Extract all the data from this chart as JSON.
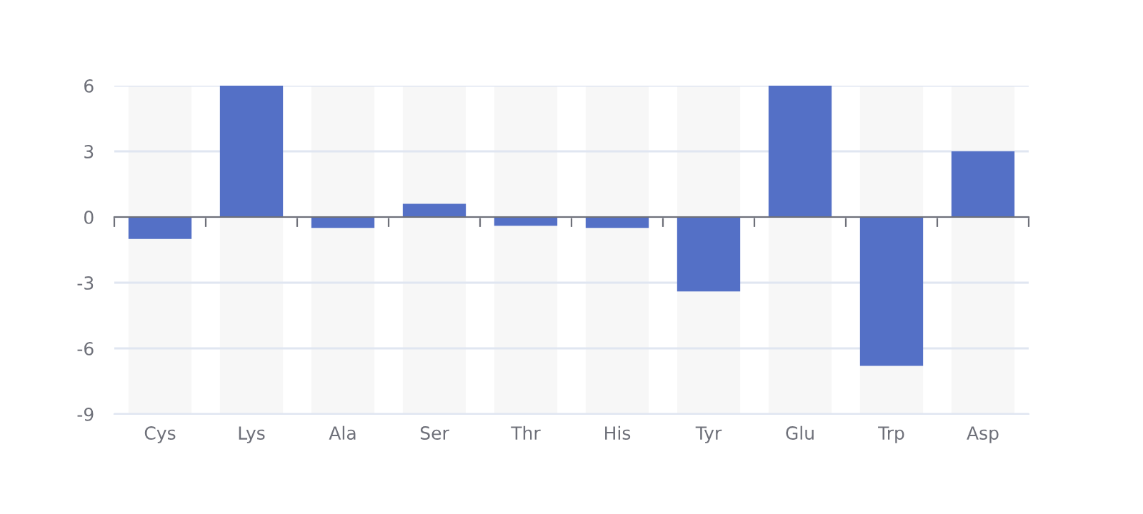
{
  "chart_data": {
    "type": "bar",
    "categories": [
      "Cys",
      "Lys",
      "Ala",
      "Ser",
      "Thr",
      "His",
      "Tyr",
      "Glu",
      "Trp",
      "Asp"
    ],
    "values": [
      -1,
      6,
      -0.5,
      0.6,
      -0.4,
      -0.5,
      -3.4,
      6,
      -6.8,
      3
    ],
    "color": "#5470c6",
    "ylim": [
      -9,
      6
    ],
    "yticks": [
      -9,
      -6,
      -3,
      0,
      3,
      6
    ],
    "grid": "y",
    "bands": [
      {
        "axis": "x",
        "from": "Cys",
        "to": "Cys",
        "color": "#f7f7f7"
      },
      {
        "axis": "x",
        "from": "Lys",
        "to": "Lys",
        "color": "#f7f7f7"
      },
      {
        "axis": "x",
        "from": "Ala",
        "to": "Ala",
        "color": "#f7f7f7"
      },
      {
        "axis": "x",
        "from": "Ser",
        "to": "Ser",
        "color": "#f7f7f7"
      },
      {
        "axis": "x",
        "from": "Thr",
        "to": "Thr",
        "color": "#f7f7f7"
      },
      {
        "axis": "x",
        "from": "His",
        "to": "His",
        "color": "#f7f7f7"
      },
      {
        "axis": "x",
        "from": "Tyr",
        "to": "Tyr",
        "color": "#f7f7f7"
      },
      {
        "axis": "x",
        "from": "Glu",
        "to": "Glu",
        "color": "#f7f7f7"
      },
      {
        "axis": "x",
        "from": "Trp",
        "to": "Trp",
        "color": "#f7f7f7"
      },
      {
        "axis": "x",
        "from": "Asp",
        "to": "Asp",
        "color": "#f7f7f7"
      }
    ]
  }
}
